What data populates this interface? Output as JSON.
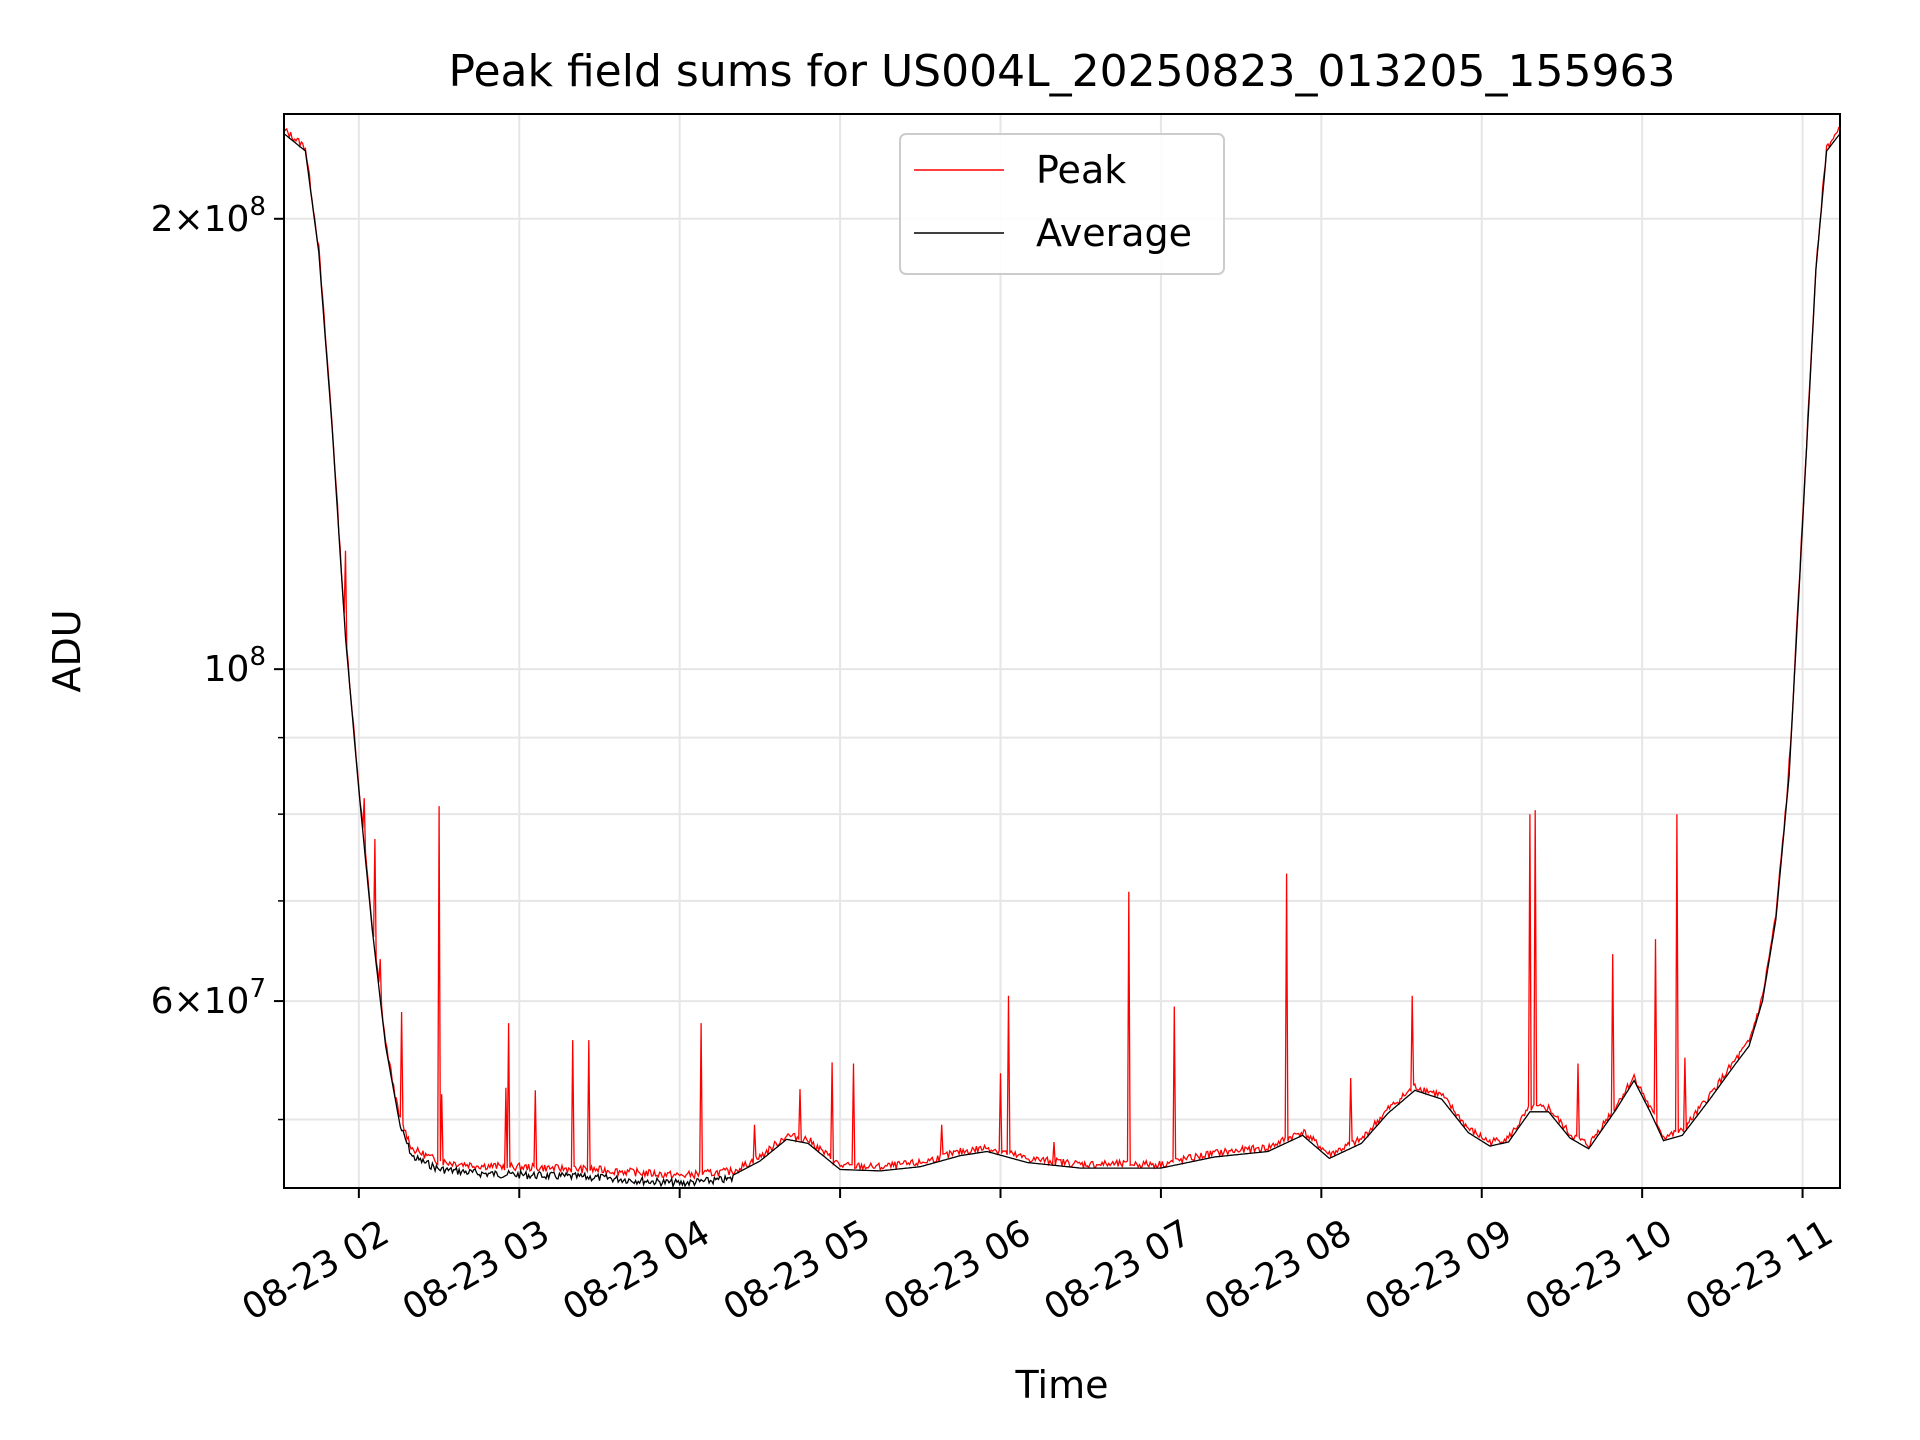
{
  "chart_data": {
    "type": "line",
    "title": "Peak field sums for US004L_20250823_013205_155963",
    "xlabel": "Time",
    "ylabel": "ADU",
    "y_scale": "log",
    "grid": true,
    "legend_position": "top-center",
    "xlim": [
      "2025-08-23 01:32",
      "2025-08-23 11:14"
    ],
    "ylim": [
      45000000,
      235000000
    ],
    "x_ticks": [
      {
        "label": "08-23 02",
        "value": "2025-08-23 02:00"
      },
      {
        "label": "08-23 03",
        "value": "2025-08-23 03:00"
      },
      {
        "label": "08-23 04",
        "value": "2025-08-23 04:00"
      },
      {
        "label": "08-23 05",
        "value": "2025-08-23 05:00"
      },
      {
        "label": "08-23 06",
        "value": "2025-08-23 06:00"
      },
      {
        "label": "08-23 07",
        "value": "2025-08-23 07:00"
      },
      {
        "label": "08-23 08",
        "value": "2025-08-23 08:00"
      },
      {
        "label": "08-23 09",
        "value": "2025-08-23 09:00"
      },
      {
        "label": "08-23 10",
        "value": "2025-08-23 10:00"
      },
      {
        "label": "08-23 11",
        "value": "2025-08-23 11:00"
      }
    ],
    "y_major_ticks": [
      {
        "value": 100000000,
        "base": "10",
        "exp": "8"
      },
      {
        "value": 200000000,
        "mant": "2",
        "base": "10",
        "exp": "8"
      },
      {
        "value": 60000000,
        "mant": "6",
        "base": "10",
        "exp": "7"
      }
    ],
    "y_minor_ticks": [
      50000000,
      70000000,
      80000000,
      90000000
    ],
    "series": [
      {
        "name": "Average",
        "color": "#000000",
        "points": [
          [
            "2025-08-23 01:32",
            228000000
          ],
          [
            "2025-08-23 01:40",
            222000000
          ],
          [
            "2025-08-23 01:45",
            190000000
          ],
          [
            "2025-08-23 01:50",
            145000000
          ],
          [
            "2025-08-23 01:55",
            105000000
          ],
          [
            "2025-08-23 02:00",
            83000000
          ],
          [
            "2025-08-23 02:05",
            67000000
          ],
          [
            "2025-08-23 02:10",
            56000000
          ],
          [
            "2025-08-23 02:15",
            50000000
          ],
          [
            "2025-08-23 02:20",
            47500000
          ],
          [
            "2025-08-23 02:30",
            46600000
          ],
          [
            "2025-08-23 02:45",
            46300000
          ],
          [
            "2025-08-23 03:00",
            46200000
          ],
          [
            "2025-08-23 03:30",
            46000000
          ],
          [
            "2025-08-23 04:00",
            45600000
          ],
          [
            "2025-08-23 04:20",
            45900000
          ],
          [
            "2025-08-23 04:30",
            46900000
          ],
          [
            "2025-08-23 04:40",
            48500000
          ],
          [
            "2025-08-23 04:48",
            48200000
          ],
          [
            "2025-08-23 05:00",
            46300000
          ],
          [
            "2025-08-23 05:15",
            46200000
          ],
          [
            "2025-08-23 05:30",
            46500000
          ],
          [
            "2025-08-23 05:45",
            47300000
          ],
          [
            "2025-08-23 05:55",
            47600000
          ],
          [
            "2025-08-23 06:10",
            46800000
          ],
          [
            "2025-08-23 06:30",
            46400000
          ],
          [
            "2025-08-23 07:00",
            46400000
          ],
          [
            "2025-08-23 07:20",
            47200000
          ],
          [
            "2025-08-23 07:40",
            47600000
          ],
          [
            "2025-08-23 07:53",
            48800000
          ],
          [
            "2025-08-23 08:03",
            47100000
          ],
          [
            "2025-08-23 08:15",
            48200000
          ],
          [
            "2025-08-23 08:25",
            50500000
          ],
          [
            "2025-08-23 08:35",
            52300000
          ],
          [
            "2025-08-23 08:45",
            51600000
          ],
          [
            "2025-08-23 08:55",
            49000000
          ],
          [
            "2025-08-23 09:03",
            48000000
          ],
          [
            "2025-08-23 09:10",
            48300000
          ],
          [
            "2025-08-23 09:18",
            50600000
          ],
          [
            "2025-08-23 09:25",
            50600000
          ],
          [
            "2025-08-23 09:33",
            48600000
          ],
          [
            "2025-08-23 09:40",
            47800000
          ],
          [
            "2025-08-23 09:50",
            50700000
          ],
          [
            "2025-08-23 09:57",
            53100000
          ],
          [
            "2025-08-23 10:03",
            50600000
          ],
          [
            "2025-08-23 10:08",
            48400000
          ],
          [
            "2025-08-23 10:15",
            48800000
          ],
          [
            "2025-08-23 10:25",
            51500000
          ],
          [
            "2025-08-23 10:35",
            54500000
          ],
          [
            "2025-08-23 10:40",
            56000000
          ],
          [
            "2025-08-23 10:45",
            60000000
          ],
          [
            "2025-08-23 10:50",
            68000000
          ],
          [
            "2025-08-23 10:55",
            85000000
          ],
          [
            "2025-08-23 11:00",
            125000000
          ],
          [
            "2025-08-23 11:05",
            185000000
          ],
          [
            "2025-08-23 11:09",
            222000000
          ],
          [
            "2025-08-23 11:14",
            228000000
          ]
        ]
      },
      {
        "name": "Peak",
        "color": "#ff0000",
        "spikes": [
          [
            "2025-08-23 01:55",
            120000000
          ],
          [
            "2025-08-23 02:02",
            82000000
          ],
          [
            "2025-08-23 02:06",
            77000000
          ],
          [
            "2025-08-23 02:08",
            64000000
          ],
          [
            "2025-08-23 02:16",
            59000000
          ],
          [
            "2025-08-23 02:30",
            81000000
          ],
          [
            "2025-08-23 02:31",
            52000000
          ],
          [
            "2025-08-23 02:55",
            52500000
          ],
          [
            "2025-08-23 02:56",
            58000000
          ],
          [
            "2025-08-23 03:06",
            52300000
          ],
          [
            "2025-08-23 03:20",
            56500000
          ],
          [
            "2025-08-23 03:26",
            56500000
          ],
          [
            "2025-08-23 04:08",
            58000000
          ],
          [
            "2025-08-23 04:28",
            49600000
          ],
          [
            "2025-08-23 04:45",
            52400000
          ],
          [
            "2025-08-23 04:57",
            54600000
          ],
          [
            "2025-08-23 05:05",
            54500000
          ],
          [
            "2025-08-23 05:38",
            49600000
          ],
          [
            "2025-08-23 06:00",
            53700000
          ],
          [
            "2025-08-23 06:03",
            60500000
          ],
          [
            "2025-08-23 06:20",
            48300000
          ],
          [
            "2025-08-23 06:48",
            71000000
          ],
          [
            "2025-08-23 07:05",
            59500000
          ],
          [
            "2025-08-23 07:47",
            73000000
          ],
          [
            "2025-08-23 08:11",
            53300000
          ],
          [
            "2025-08-23 08:34",
            60500000
          ],
          [
            "2025-08-23 09:18",
            80000000
          ],
          [
            "2025-08-23 09:20",
            80500000
          ],
          [
            "2025-08-23 09:36",
            54500000
          ],
          [
            "2025-08-23 09:49",
            64500000
          ],
          [
            "2025-08-23 10:05",
            66000000
          ],
          [
            "2025-08-23 10:13",
            80000000
          ],
          [
            "2025-08-23 10:16",
            55000000
          ],
          [
            "2025-08-23 10:55",
            87000000
          ]
        ]
      }
    ]
  }
}
